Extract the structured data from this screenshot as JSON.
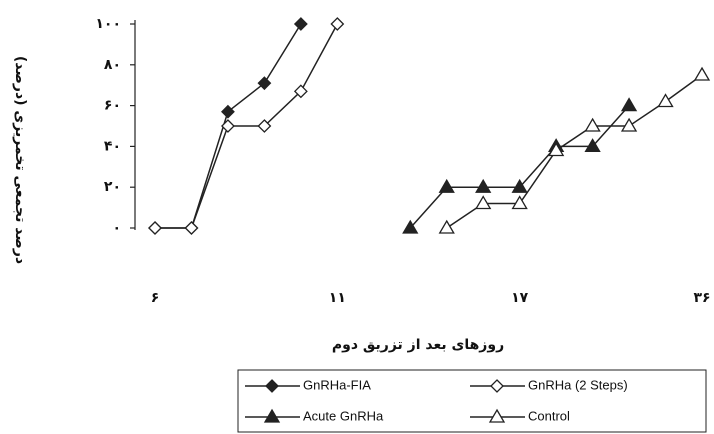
{
  "chart_data": {
    "type": "line",
    "x_label": "روزهای بعد از تزریق دوم",
    "y_label": "درصد تجمعی تخمریزی (درصد)",
    "categories": [
      "۶",
      null,
      null,
      null,
      null,
      "۱۱",
      null,
      null,
      null,
      null,
      "۱۷",
      null,
      null,
      null,
      null,
      "۳۶"
    ],
    "series": [
      {
        "name": "GnRHa-FIA",
        "color": "#222222",
        "marker": "diamond",
        "filled": true,
        "values": [
          0,
          0,
          57,
          71,
          100,
          null,
          null,
          null,
          null,
          null,
          null,
          null,
          null,
          null,
          null,
          null
        ]
      },
      {
        "name": "GnRHa (2 Steps)",
        "color": "#222222",
        "marker": "diamond",
        "filled": false,
        "values": [
          0,
          0,
          50,
          50,
          67,
          100,
          null,
          null,
          null,
          null,
          null,
          null,
          null,
          null,
          null,
          null
        ]
      },
      {
        "name": "Acute GnRHa",
        "color": "#222222",
        "marker": "triangle",
        "filled": true,
        "values": [
          null,
          null,
          null,
          null,
          null,
          null,
          null,
          0,
          20,
          20,
          20,
          40,
          40,
          60,
          null,
          null
        ]
      },
      {
        "name": "Control",
        "color": "#222222",
        "marker": "triangle",
        "filled": false,
        "values": [
          null,
          null,
          null,
          null,
          null,
          null,
          null,
          null,
          0,
          12,
          12,
          38,
          50,
          50,
          62,
          75
        ]
      }
    ],
    "ylim": [
      0,
      100
    ],
    "yticks": [
      {
        "value": 0,
        "label": "۰"
      },
      {
        "value": 20,
        "label": "۲۰"
      },
      {
        "value": 40,
        "label": "۴۰"
      },
      {
        "value": 60,
        "label": "۶۰"
      },
      {
        "value": 80,
        "label": "۸۰"
      },
      {
        "value": 100,
        "label": "۱۰۰"
      }
    ],
    "grid": false
  }
}
